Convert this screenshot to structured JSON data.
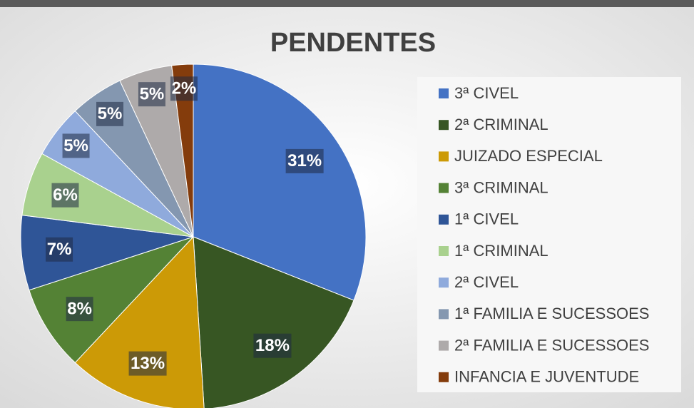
{
  "chart_data": {
    "type": "pie",
    "title": "PENDENTES",
    "categories": [
      "3ª CIVEL",
      "2ª CRIMINAL",
      "JUIZADO ESPECIAL",
      "3ª CRIMINAL",
      "1ª CIVEL",
      "1ª CRIMINAL",
      "2ª CIVEL",
      "1ª FAMILIA E SUCESSOES",
      "2ª FAMILIA E SUCESSOES",
      "INFANCIA E JUVENTUDE"
    ],
    "values": [
      31,
      18,
      13,
      8,
      7,
      6,
      5,
      5,
      5,
      2
    ],
    "value_labels": [
      "31%",
      "18%",
      "13%",
      "8%",
      "7%",
      "6%",
      "5%",
      "5%",
      "5%",
      "2%"
    ],
    "colors": [
      "#4472c4",
      "#375623",
      "#cc9a06",
      "#548235",
      "#2f5597",
      "#a9d18e",
      "#8faadc",
      "#8497b0",
      "#aeaaaa",
      "#843c0c"
    ],
    "legend": "right"
  }
}
